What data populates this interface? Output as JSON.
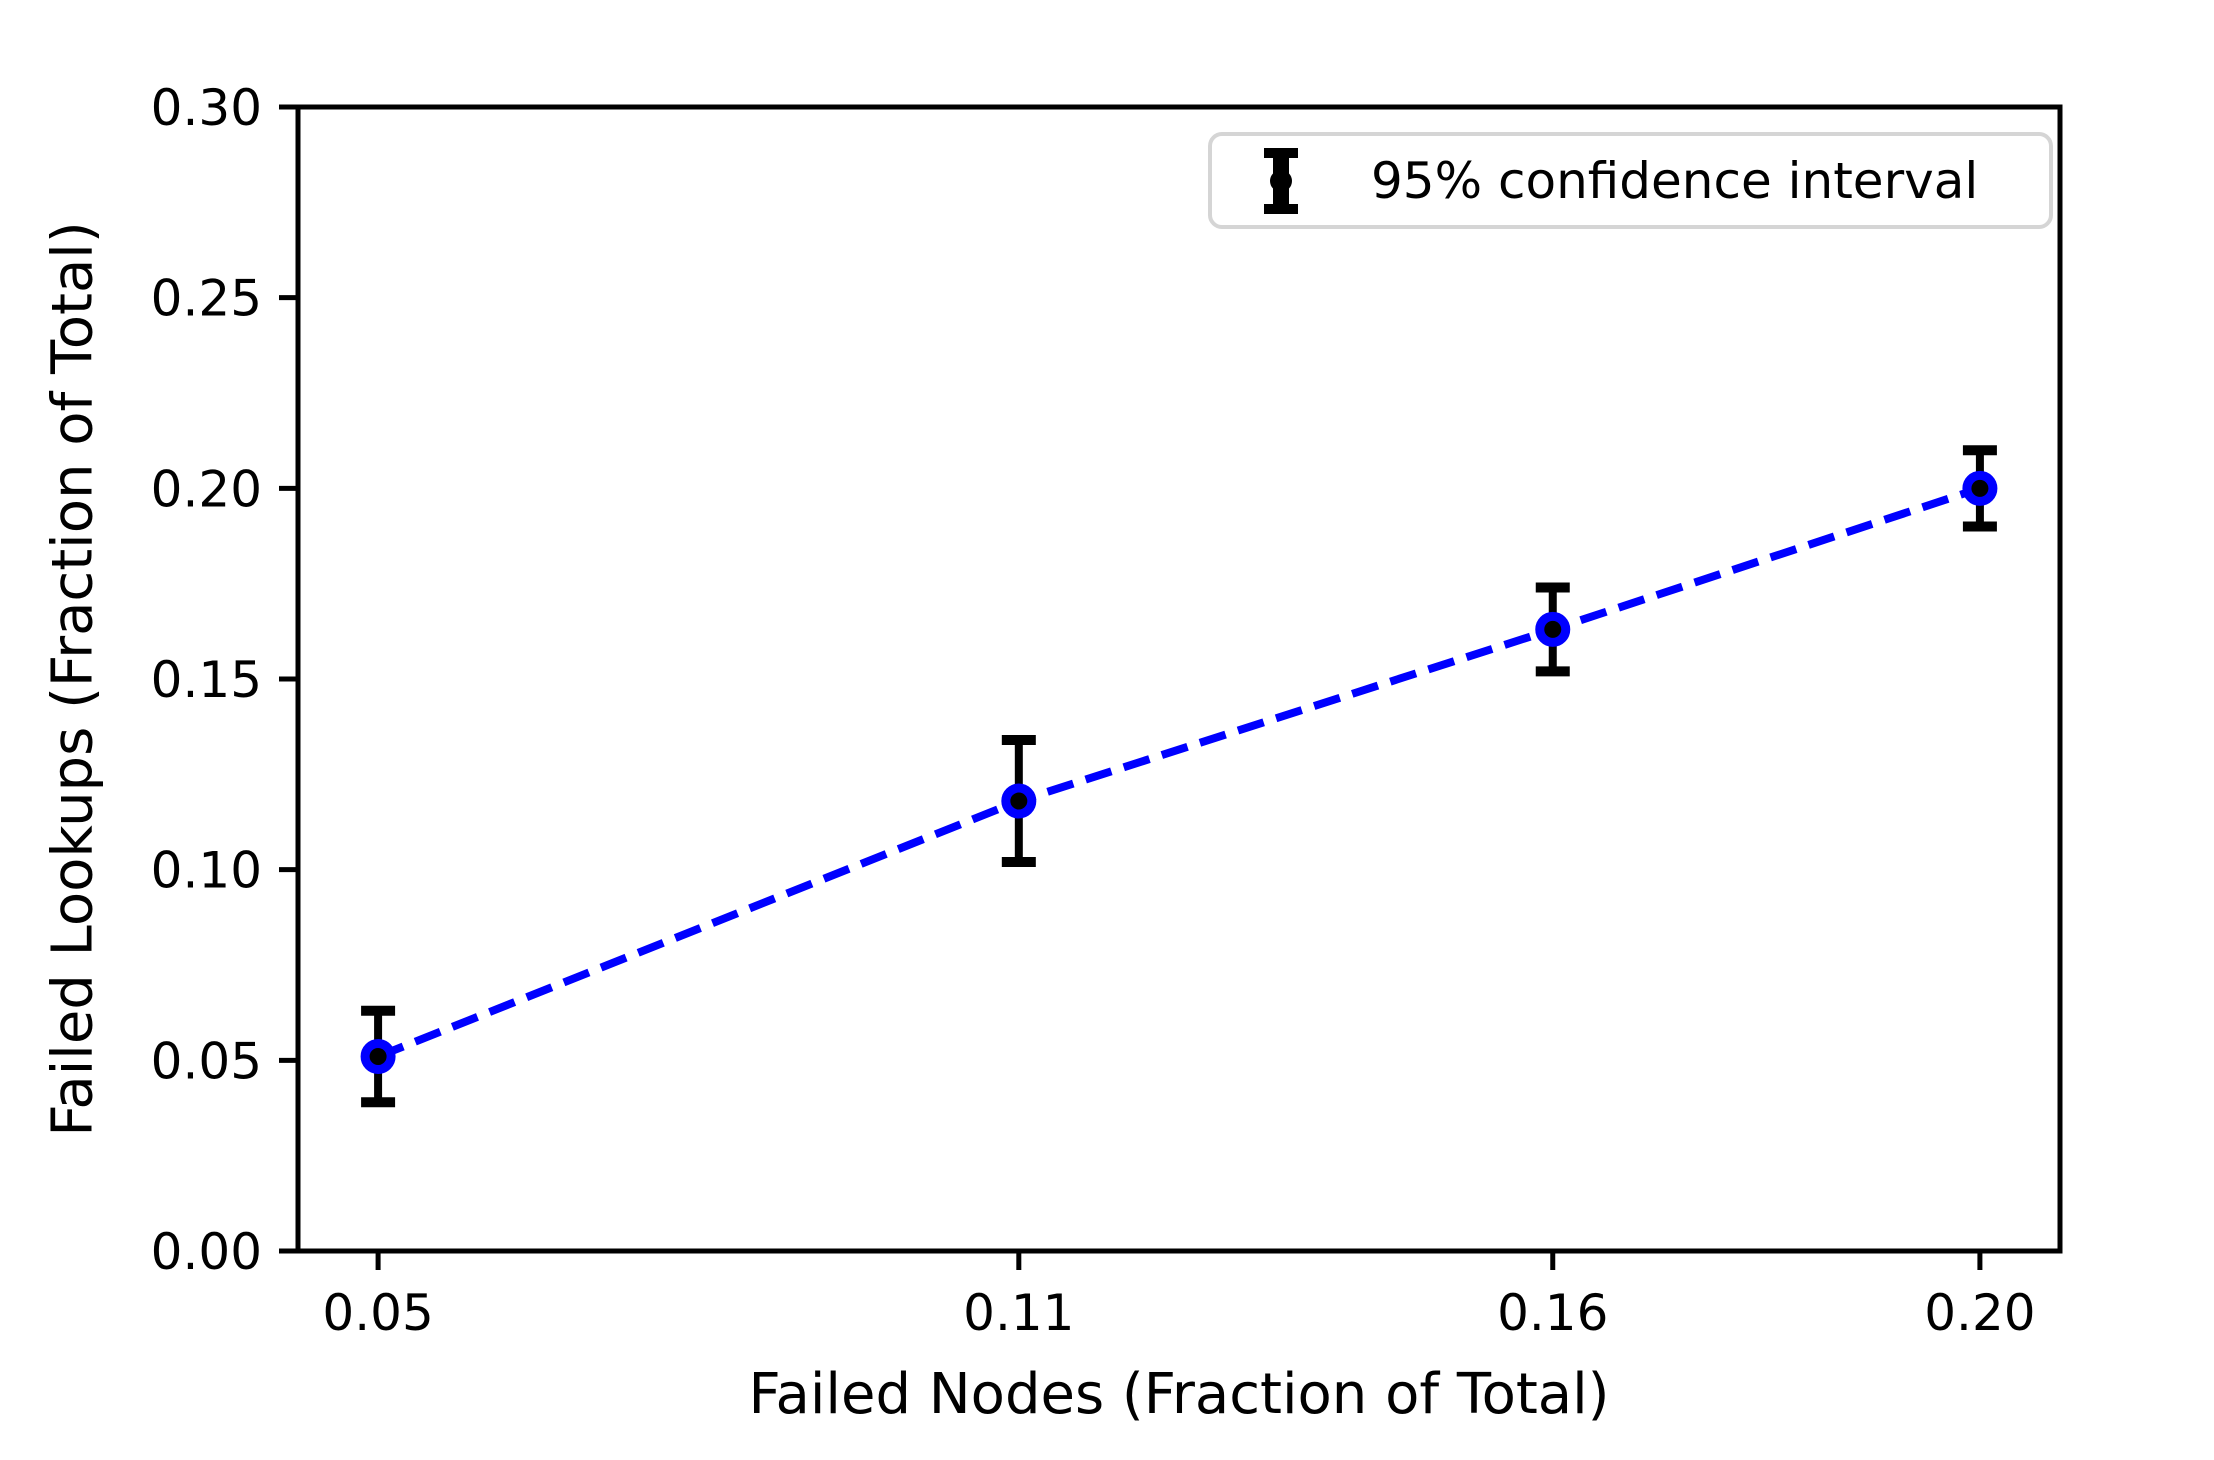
{
  "chart_data": {
    "type": "line",
    "title": "",
    "xlabel": "Failed Nodes (Fraction of Total)",
    "ylabel": "Failed Lookups (Fraction of Total)",
    "x": [
      0.05,
      0.11,
      0.16,
      0.2
    ],
    "y": [
      0.051,
      0.118,
      0.163,
      0.2
    ],
    "yerr": [
      0.012,
      0.016,
      0.011,
      0.01
    ],
    "xticks": [
      0.05,
      0.11,
      0.16,
      0.2
    ],
    "xtick_labels": [
      "0.05",
      "0.11",
      "0.16",
      "0.20"
    ],
    "yticks": [
      0.0,
      0.05,
      0.1,
      0.15,
      0.2,
      0.25,
      0.3
    ],
    "ytick_labels": [
      "0.00",
      "0.05",
      "0.10",
      "0.15",
      "0.20",
      "0.25",
      "0.30"
    ],
    "xlim": [
      0.0425,
      0.2075
    ],
    "ylim": [
      0.0,
      0.3
    ],
    "grid": false,
    "line_style": "dashed",
    "marker": "circle",
    "legend": {
      "position": "upper right",
      "entries": [
        "95% confidence interval"
      ]
    },
    "colors": {
      "line": "#0000ff",
      "marker_edge": "#0000ff",
      "marker_face": "#000000",
      "error": "#000000",
      "axis": "#000000",
      "background": "#ffffff",
      "legend_border": "#d5d5d5"
    }
  }
}
